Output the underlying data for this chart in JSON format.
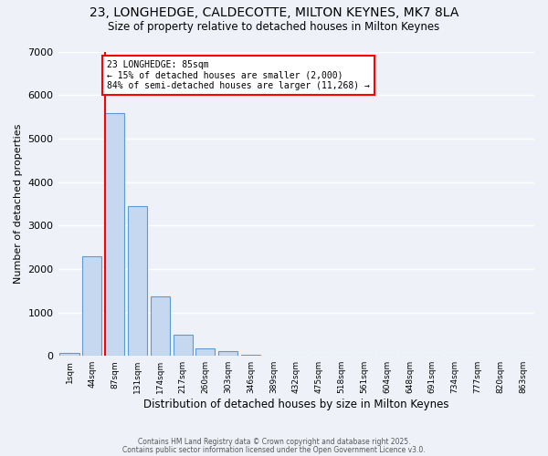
{
  "title1": "23, LONGHEDGE, CALDECOTTE, MILTON KEYNES, MK7 8LA",
  "title2": "Size of property relative to detached houses in Milton Keynes",
  "xlabel": "Distribution of detached houses by size in Milton Keynes",
  "ylabel": "Number of detached properties",
  "bin_labels": [
    "1sqm",
    "44sqm",
    "87sqm",
    "131sqm",
    "174sqm",
    "217sqm",
    "260sqm",
    "303sqm",
    "346sqm",
    "389sqm",
    "432sqm",
    "475sqm",
    "518sqm",
    "561sqm",
    "604sqm",
    "648sqm",
    "691sqm",
    "734sqm",
    "777sqm",
    "820sqm",
    "863sqm"
  ],
  "bar_values": [
    70,
    2300,
    5580,
    3450,
    1360,
    480,
    170,
    100,
    30,
    0,
    0,
    0,
    0,
    0,
    0,
    0,
    0,
    0,
    0,
    0,
    0
  ],
  "bar_color": "#c5d8f0",
  "bar_edge_color": "#5b9bd5",
  "red_line_bin_index": 2,
  "annotation_text": "23 LONGHEDGE: 85sqm\n← 15% of detached houses are smaller (2,000)\n84% of semi-detached houses are larger (11,268) →",
  "annotation_box_color": "white",
  "annotation_border_color": "red",
  "ylim": [
    0,
    7000
  ],
  "footer1": "Contains HM Land Registry data © Crown copyright and database right 2025.",
  "footer2": "Contains public sector information licensed under the Open Government Licence v3.0.",
  "bg_color": "#eef2f8",
  "grid_color": "white"
}
